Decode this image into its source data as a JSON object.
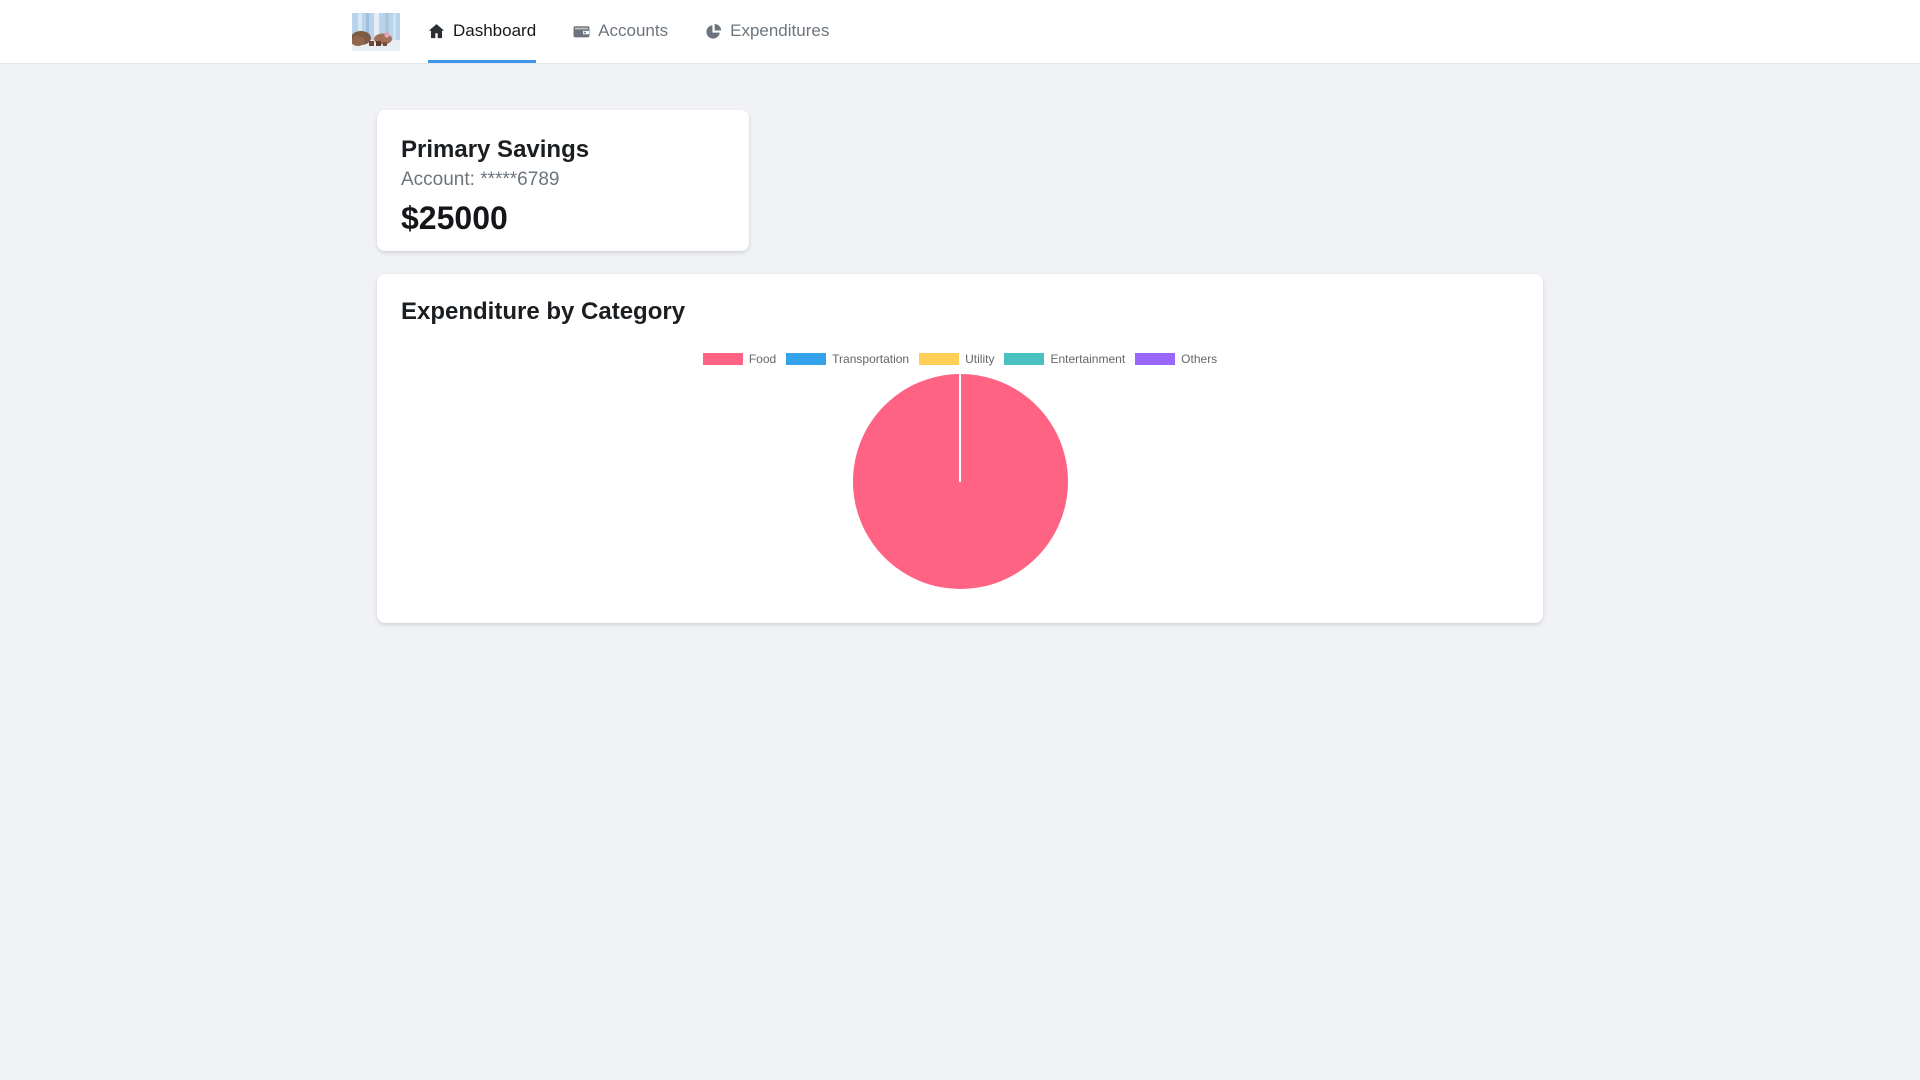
{
  "navbar": {
    "logo": "bank-logo-photo",
    "tabs": [
      {
        "label": "Dashboard",
        "icon": "home-icon",
        "active": true
      },
      {
        "label": "Accounts",
        "icon": "wallet-icon",
        "active": false
      },
      {
        "label": "Expenditures",
        "icon": "pie-chart-icon",
        "active": false
      }
    ],
    "active_tab_underline_color": "#3e96ec"
  },
  "account_card": {
    "title": "Primary Savings",
    "account_number": "Account: *****6789",
    "balance": "$25000"
  },
  "chart_data": {
    "type": "pie",
    "title": "Expenditure by Category",
    "labels": [
      "Food",
      "Transportation",
      "Utility",
      "Entertainment",
      "Others"
    ],
    "values": [
      100,
      0,
      0,
      0,
      0
    ],
    "value_unit": "percent-of-pie",
    "colors": [
      "#FF6384",
      "#36A2EB",
      "#FFCE56",
      "#4BC0C0",
      "#9966FF"
    ],
    "legend_position": "top",
    "legend_text_color": "#666666",
    "slice_border_color": "#ffffff"
  }
}
